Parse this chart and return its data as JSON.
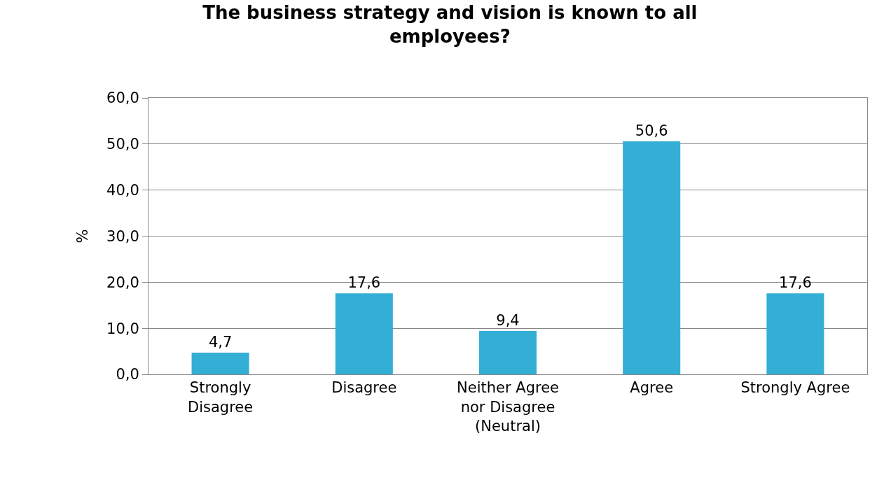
{
  "chart_data": {
    "type": "bar",
    "title": "The business strategy and vision is known to all employees?",
    "ylabel": "%",
    "categories": [
      "Strongly Disagree",
      "Disagree",
      "Neither Agree nor Disagree (Neutral)",
      "Agree",
      "Strongly Agree"
    ],
    "values": [
      4.7,
      17.6,
      9.4,
      50.6,
      17.6
    ],
    "value_labels": [
      "4,7",
      "17,6",
      "9,4",
      "50,6",
      "17,6"
    ],
    "color": "#33afd6",
    "ylim": [
      0,
      60
    ],
    "yticks": [
      {
        "value": 0,
        "label": "0,0"
      },
      {
        "value": 10,
        "label": "10,0"
      },
      {
        "value": 20,
        "label": "20,0"
      },
      {
        "value": 30,
        "label": "30,0"
      },
      {
        "value": 40,
        "label": "40,0"
      },
      {
        "value": 50,
        "label": "50,0"
      },
      {
        "value": 60,
        "label": "60,0"
      }
    ],
    "grid": "y"
  }
}
